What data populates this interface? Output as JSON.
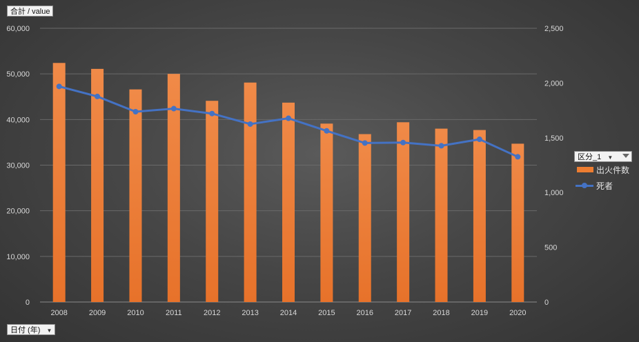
{
  "pivot": {
    "value_field": "合計 / value",
    "axis_field": "日付 (年)",
    "legend_field": "区分_1"
  },
  "chart_data": {
    "type": "bar",
    "categories": [
      "2008",
      "2009",
      "2010",
      "2011",
      "2012",
      "2013",
      "2014",
      "2015",
      "2016",
      "2017",
      "2018",
      "2019",
      "2020"
    ],
    "series": [
      {
        "name": "出火件数",
        "type": "bar",
        "axis": "left",
        "color": "#ed7d31",
        "values": [
          52400,
          51100,
          46600,
          50000,
          44100,
          48100,
          43700,
          39100,
          36800,
          39400,
          38000,
          37700,
          34700
        ]
      },
      {
        "name": "死者",
        "type": "line",
        "axis": "right",
        "color": "#4472c4",
        "values": [
          1969,
          1877,
          1738,
          1766,
          1721,
          1625,
          1678,
          1563,
          1452,
          1456,
          1427,
          1486,
          1326
        ]
      }
    ],
    "ylim_left": [
      0,
      60000
    ],
    "ylim_right": [
      0,
      2500
    ],
    "left_ticks": [
      "0",
      "10,000",
      "20,000",
      "30,000",
      "40,000",
      "50,000",
      "60,000"
    ],
    "right_ticks": [
      "0",
      "500",
      "1,000",
      "1,500",
      "2,000",
      "2,500"
    ],
    "grid": true,
    "legend": "right"
  }
}
